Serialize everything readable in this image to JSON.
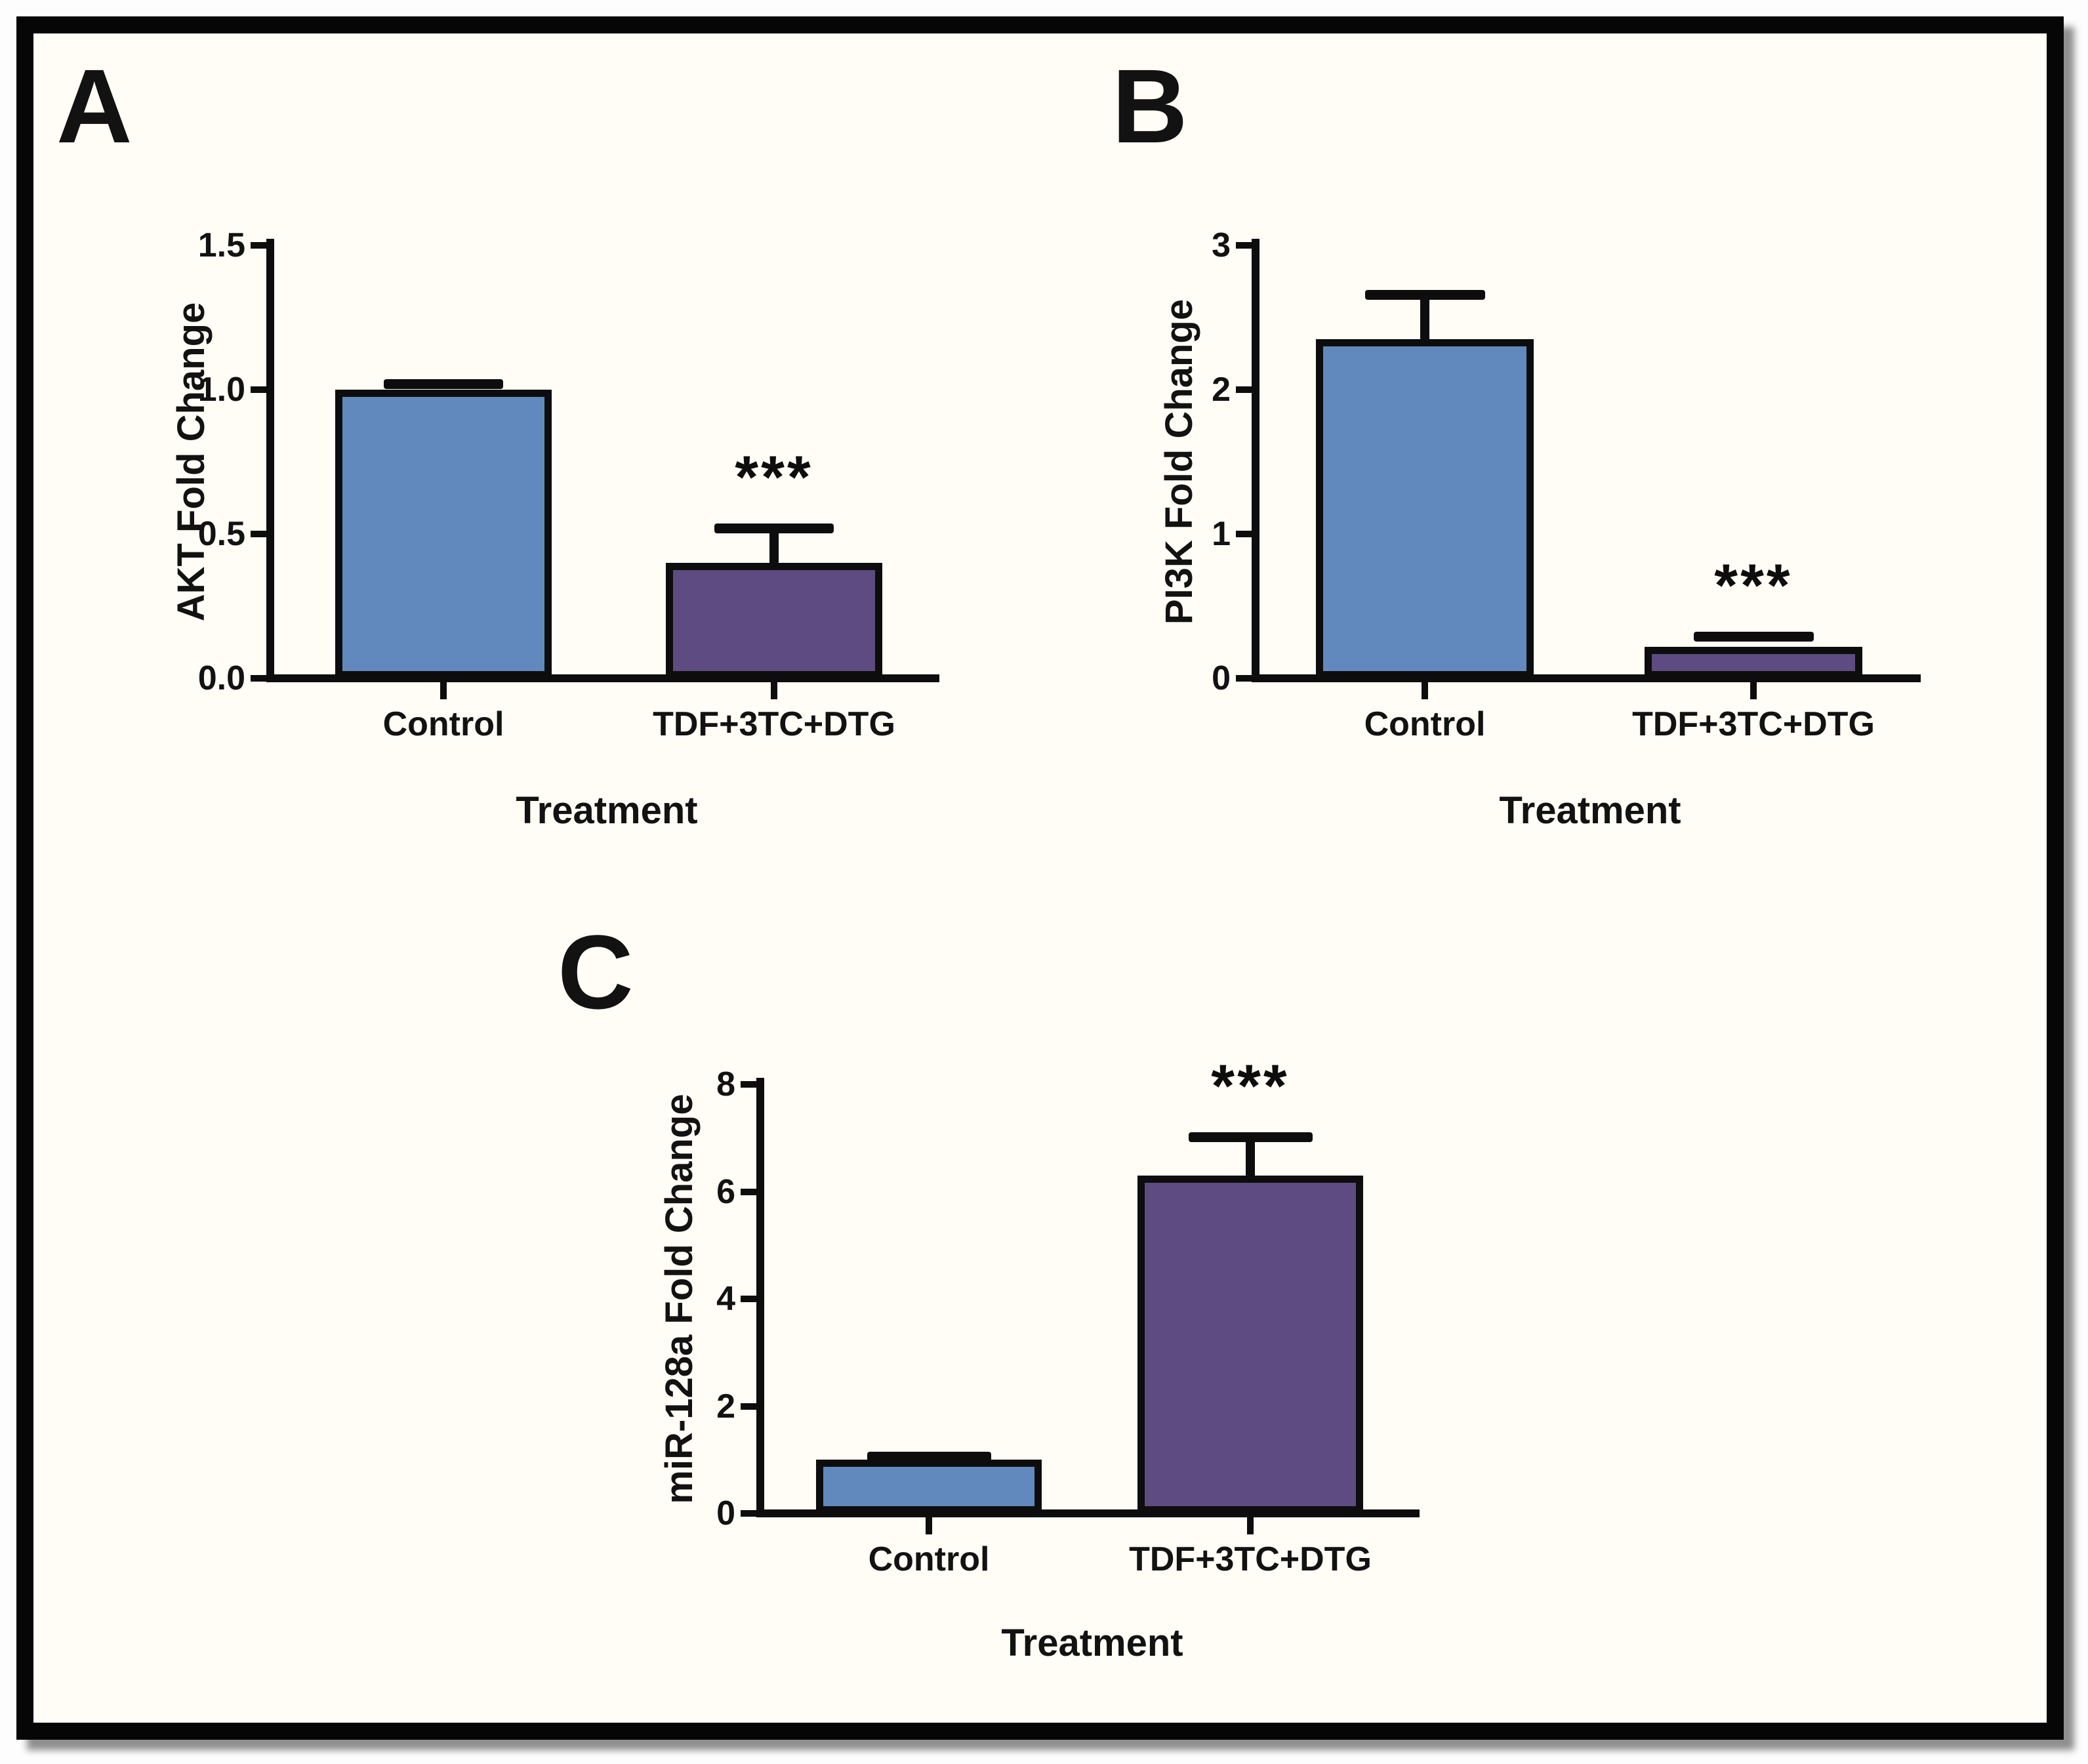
{
  "figure": {
    "background_color": "#fffdf6",
    "frame_color": "#060606",
    "text_color": "#121212",
    "control_bar_color": "#6289bd",
    "treated_bar_color": "#5d4b81"
  },
  "chart_data": [
    {
      "type": "bar",
      "panel_label": "A",
      "title": "",
      "xlabel": "Treatment",
      "ylabel": "AKT Fold Change",
      "categories": [
        "Control",
        "TDF+3TC+DTG"
      ],
      "values": [
        1.0,
        0.4
      ],
      "errors_plus": [
        0.02,
        0.12
      ],
      "significance": [
        "",
        "***"
      ],
      "ylim": [
        0,
        1.5
      ],
      "yticks": [
        0,
        0.5,
        1.0,
        1.5
      ],
      "ytick_labels": [
        "0.0",
        "0.5",
        "1.0",
        "1.5"
      ],
      "bar_colors": [
        "#6289bd",
        "#5d4b81"
      ],
      "grid": "off",
      "legend": "none"
    },
    {
      "type": "bar",
      "panel_label": "B",
      "title": "",
      "xlabel": "Treatment",
      "ylabel": "PI3K Fold Change",
      "categories": [
        "Control",
        "TDF+3TC+DTG"
      ],
      "values": [
        2.35,
        0.22
      ],
      "errors_plus": [
        0.31,
        0.07
      ],
      "significance": [
        "",
        "***"
      ],
      "ylim": [
        0,
        3
      ],
      "yticks": [
        0,
        1,
        2,
        3
      ],
      "ytick_labels": [
        "0",
        "1",
        "2",
        "3"
      ],
      "bar_colors": [
        "#6289bd",
        "#5d4b81"
      ],
      "grid": "off",
      "legend": "none"
    },
    {
      "type": "bar",
      "panel_label": "C",
      "title": "",
      "xlabel": "Treatment",
      "ylabel": "miR-128a Fold Change",
      "categories": [
        "Control",
        "TDF+3TC+DTG"
      ],
      "values": [
        1.0,
        6.3
      ],
      "errors_plus": [
        0.07,
        0.72
      ],
      "significance": [
        "",
        "***"
      ],
      "ylim": [
        0,
        8
      ],
      "yticks": [
        0,
        2,
        4,
        6,
        8
      ],
      "ytick_labels": [
        "0",
        "2",
        "4",
        "6",
        "8"
      ],
      "bar_colors": [
        "#6289bd",
        "#5d4b81"
      ],
      "grid": "off",
      "legend": "none"
    }
  ]
}
